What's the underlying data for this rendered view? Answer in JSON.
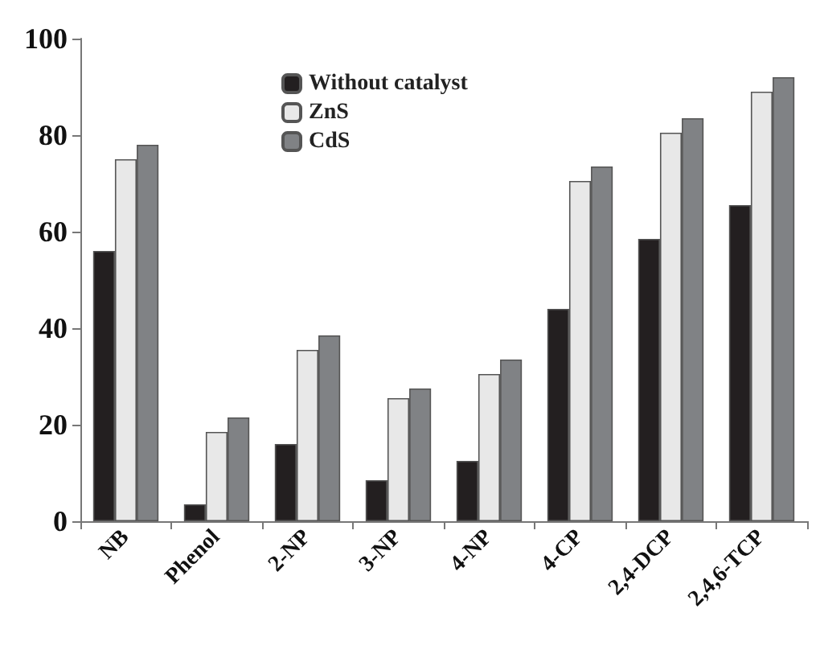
{
  "chart_data": {
    "type": "bar",
    "categories": [
      "NB",
      "Phenol",
      "2-NP",
      "3-NP",
      "4-NP",
      "4-CP",
      "2,4-DCP",
      "2,4,6-TCP"
    ],
    "series": [
      {
        "name": "Without catalyst",
        "color": "#231f20",
        "values": [
          56,
          3.5,
          16,
          8.5,
          12.5,
          44,
          58.5,
          65.5
        ]
      },
      {
        "name": "ZnS",
        "color": "#e8e8e8",
        "values": [
          75,
          18.5,
          35.5,
          25.5,
          30.5,
          70.5,
          80.5,
          89
        ]
      },
      {
        "name": "CdS",
        "color": "#808285",
        "values": [
          78,
          21.5,
          38.5,
          27.5,
          33.5,
          73.5,
          83.5,
          92
        ]
      }
    ],
    "ylim": [
      0,
      100
    ],
    "yticks": [
      0,
      20,
      40,
      60,
      80,
      100
    ],
    "grid": false,
    "legend": "top"
  }
}
